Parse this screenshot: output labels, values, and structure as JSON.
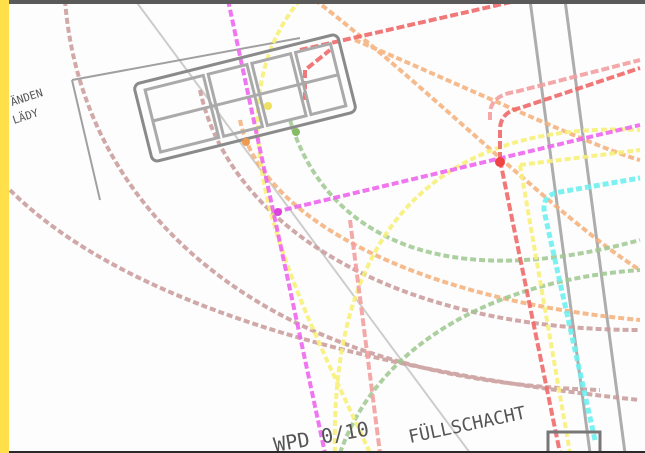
{
  "labels": {
    "corner_line1": "ÄNDEN",
    "corner_line2": "LÄDY",
    "device": "WPD 0/10",
    "shaft": "FÜLLSCHACHT"
  },
  "colors": {
    "window_left_bar": "#ffe04a",
    "window_top_bar": "#5a5a5a",
    "red": "#f06a6a",
    "magenta": "#ee66ee",
    "yellow": "#f7f07a",
    "orange": "#f5b07a",
    "green": "#9fc890",
    "brown": "#c99a9a",
    "cyan": "#6ef0f0",
    "gray": "#9a9a9a"
  }
}
